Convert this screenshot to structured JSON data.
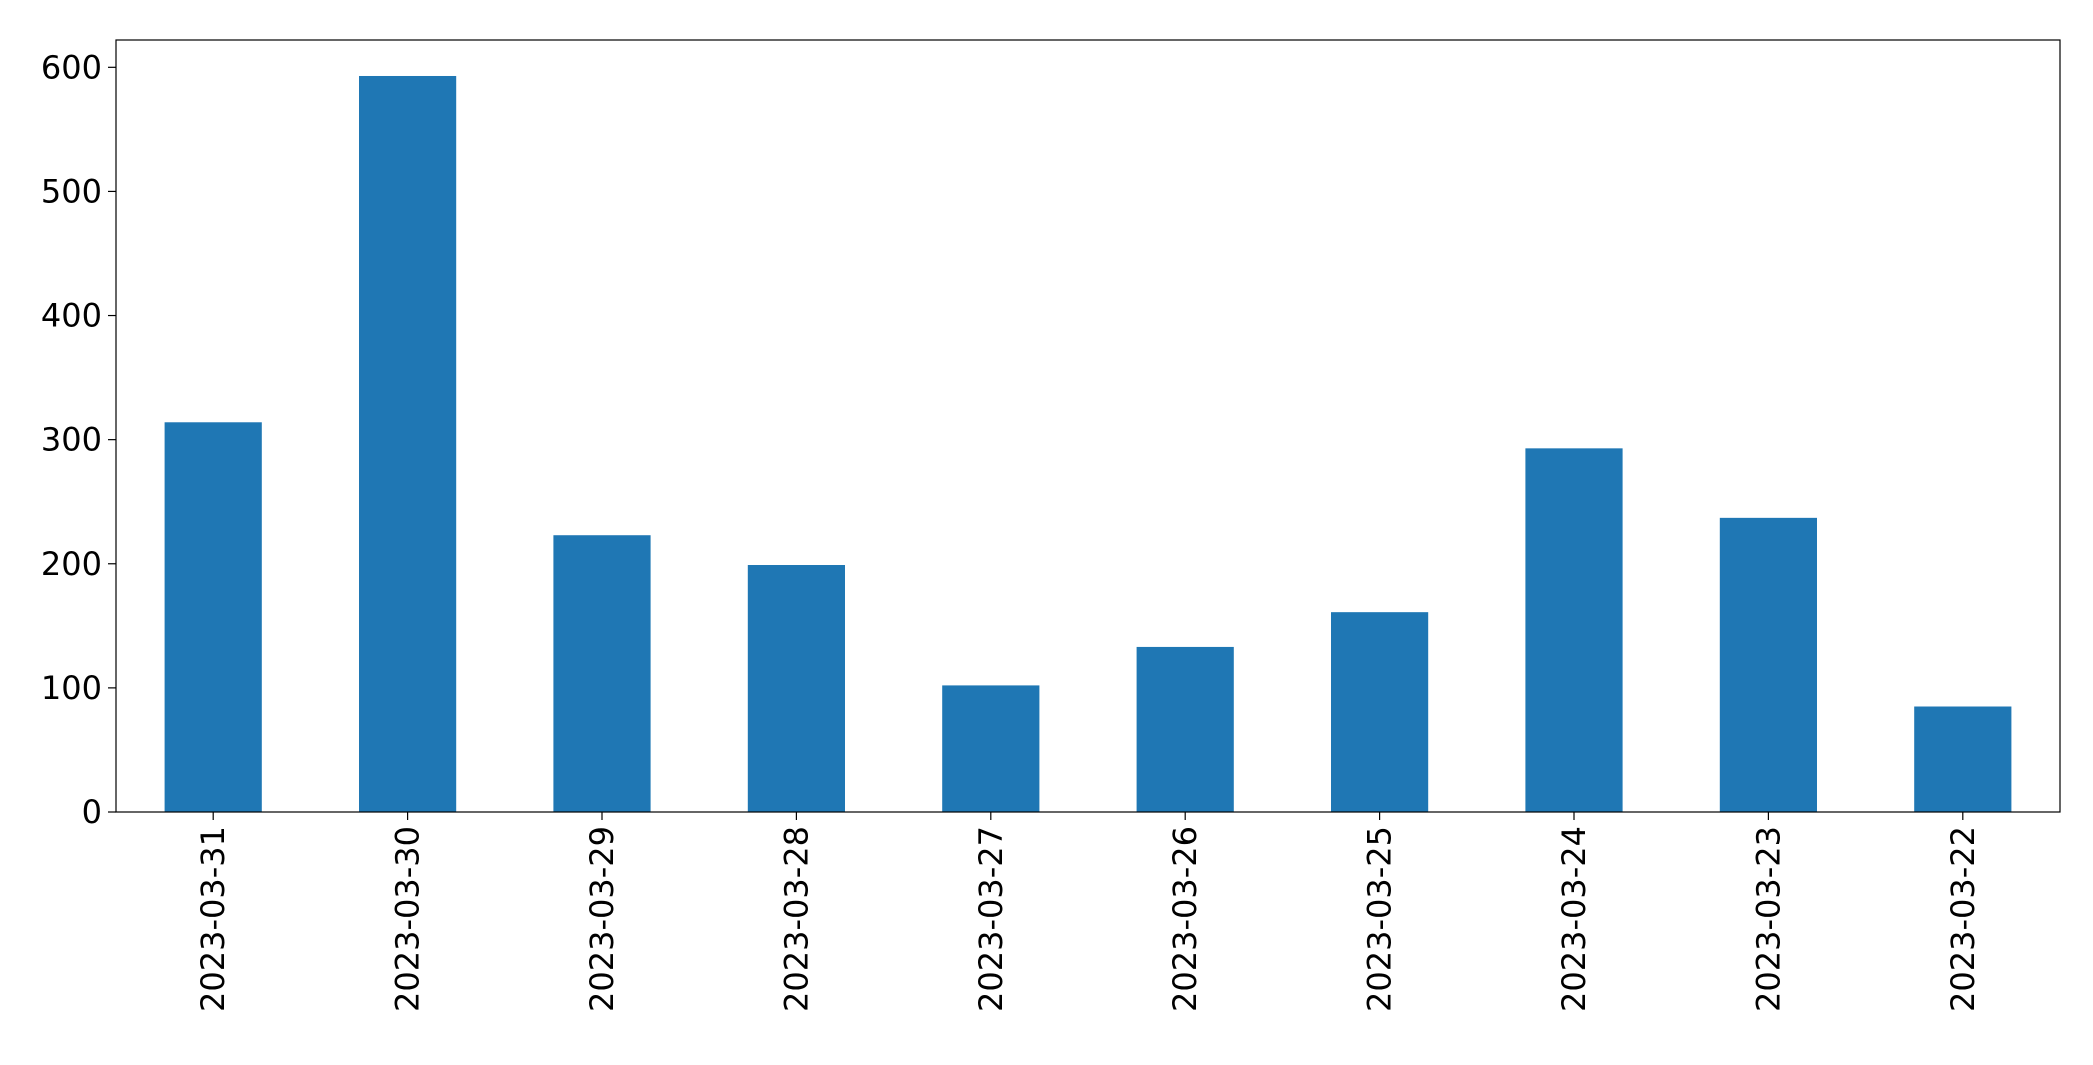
{
  "chart_data": {
    "type": "bar",
    "title": "",
    "xlabel": "",
    "ylabel": "",
    "categories": [
      "2023-03-31",
      "2023-03-30",
      "2023-03-29",
      "2023-03-28",
      "2023-03-27",
      "2023-03-26",
      "2023-03-25",
      "2023-03-24",
      "2023-03-23",
      "2023-03-22"
    ],
    "values": [
      314,
      593,
      223,
      199,
      102,
      133,
      161,
      293,
      237,
      85
    ],
    "ylim": [
      0,
      622
    ],
    "yticks": [
      0,
      100,
      200,
      300,
      400,
      500,
      600
    ],
    "grid": false,
    "legend": "none",
    "bar_color": "#1f77b4"
  }
}
